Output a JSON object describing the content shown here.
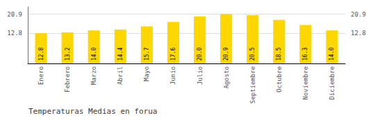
{
  "chart_data": {
    "type": "bar",
    "title": "Temperaturas Medias en forua",
    "categories": [
      "Enero",
      "Febrero",
      "Marzo",
      "Abril",
      "Mayo",
      "Junio",
      "Julio",
      "Agosto",
      "Septiembre",
      "Octubre",
      "Noviembre",
      "Diciembre"
    ],
    "values": [
      12.8,
      13.2,
      14.0,
      14.4,
      15.7,
      17.6,
      20.0,
      20.9,
      20.5,
      18.5,
      16.3,
      14.0
    ],
    "value_labels": [
      "12.8",
      "13.2",
      "14.0",
      "14.4",
      "15.7",
      "17.6",
      "20.0",
      "20.9",
      "20.5",
      "18.5",
      "16.3",
      "14.0"
    ],
    "color": "#FFD700",
    "ylim": [
      0.0,
      24.0
    ],
    "yticks": [
      12.8,
      20.9
    ],
    "grid": true,
    "data_labels": true
  }
}
